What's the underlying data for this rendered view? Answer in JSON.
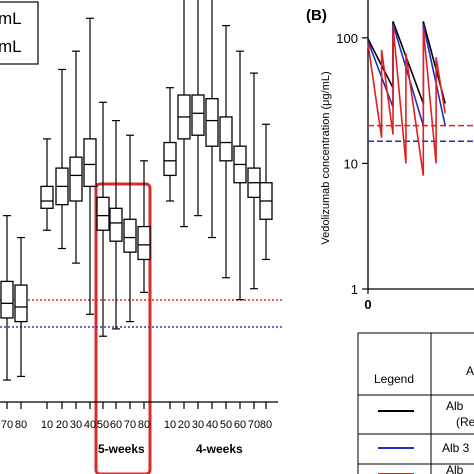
{
  "chart_data": [
    {
      "type": "box",
      "legend": [
        "mL",
        "mL"
      ],
      "group_labels": [
        "5-weeks",
        "4-weeks"
      ],
      "reference_lines": [
        {
          "color": "#d92b2b",
          "style": "dotted"
        },
        {
          "color": "#2b3fbf",
          "style": "dotted"
        }
      ],
      "highlight_color": "#d92b2b",
      "groups": [
        {
          "name": "",
          "categories": [
            "70",
            "80"
          ],
          "boxes": [
            {
              "whisker_low": 0.06,
              "q1": 0.23,
              "median": 0.27,
              "q3": 0.33,
              "whisker_high": 0.51
            },
            {
              "whisker_low": 0.07,
              "q1": 0.22,
              "median": 0.26,
              "q3": 0.32,
              "whisker_high": 0.45
            }
          ]
        },
        {
          "name": "5-weeks",
          "categories": [
            "10",
            "20",
            "30",
            "40",
            "50",
            "60",
            "70",
            "80"
          ],
          "boxes": [
            {
              "whisker_low": 0.47,
              "q1": 0.53,
              "median": 0.55,
              "q3": 0.59,
              "whisker_high": 0.72
            },
            {
              "whisker_low": 0.42,
              "q1": 0.54,
              "median": 0.59,
              "q3": 0.64,
              "whisker_high": 0.91
            },
            {
              "whisker_low": 0.38,
              "q1": 0.55,
              "median": 0.62,
              "q3": 0.67,
              "whisker_high": 0.96
            },
            {
              "whisker_low": 0.24,
              "q1": 0.59,
              "median": 0.65,
              "q3": 0.72,
              "whisker_high": 1.05
            },
            {
              "whisker_low": 0.18,
              "q1": 0.47,
              "median": 0.51,
              "q3": 0.56,
              "whisker_high": 0.82
            },
            {
              "whisker_low": 0.2,
              "q1": 0.44,
              "median": 0.49,
              "q3": 0.53,
              "whisker_high": 0.77
            },
            {
              "whisker_low": 0.22,
              "q1": 0.41,
              "median": 0.45,
              "q3": 0.5,
              "whisker_high": 0.73
            },
            {
              "whisker_low": 0.3,
              "q1": 0.39,
              "median": 0.43,
              "q3": 0.48,
              "whisker_high": 0.66
            }
          ]
        },
        {
          "name": "4-weeks",
          "categories": [
            "10",
            "20",
            "30",
            "40",
            "50",
            "60",
            "70",
            "80"
          ],
          "boxes": [
            {
              "whisker_low": 0.55,
              "q1": 0.62,
              "median": 0.66,
              "q3": 0.71,
              "whisker_high": 0.86
            },
            {
              "whisker_low": 0.48,
              "q1": 0.72,
              "median": 0.78,
              "q3": 0.84,
              "whisker_high": 1.14
            },
            {
              "whisker_low": 0.51,
              "q1": 0.73,
              "median": 0.79,
              "q3": 0.84,
              "whisker_high": 1.17
            },
            {
              "whisker_low": 0.45,
              "q1": 0.7,
              "median": 0.77,
              "q3": 0.83,
              "whisker_high": 1.17
            },
            {
              "whisker_low": 0.34,
              "q1": 0.66,
              "median": 0.71,
              "q3": 0.78,
              "whisker_high": 1.03
            },
            {
              "whisker_low": 0.28,
              "q1": 0.6,
              "median": 0.65,
              "q3": 0.7,
              "whisker_high": 0.96
            },
            {
              "whisker_low": 0.31,
              "q1": 0.56,
              "median": 0.6,
              "q3": 0.64,
              "whisker_high": 0.9
            },
            {
              "whisker_low": 0.39,
              "q1": 0.5,
              "median": 0.55,
              "q3": 0.6,
              "whisker_high": 0.76
            }
          ]
        }
      ]
    },
    {
      "type": "line",
      "panel_label": "(B)",
      "ylabel": "Vedolizumab concentration (μg/mL)",
      "yscale": "log",
      "ylim": [
        1,
        200
      ],
      "yticks": [
        1,
        10,
        100
      ],
      "xticks": [
        0
      ],
      "xlim": [
        0,
        14
      ],
      "series": [
        {
          "color": "#000000",
          "x": [
            0,
            3.3,
            3.3,
            7.3,
            7.3,
            10.2
          ],
          "y": [
            98,
            40,
            135,
            30,
            135,
            30
          ]
        },
        {
          "color": "#1f2fbf",
          "x": [
            0,
            3.3,
            3.3,
            7.3,
            7.3,
            10.2
          ],
          "y": [
            94,
            28,
            128,
            20,
            128,
            20
          ]
        },
        {
          "color": "#e02020",
          "x": [
            0,
            1.8,
            1.8,
            3.3,
            3.3,
            5.0,
            5.0,
            7.3,
            7.3,
            9.0,
            9.0,
            10.2
          ],
          "y": [
            90,
            16,
            80,
            17,
            125,
            10,
            75,
            8,
            120,
            10,
            70,
            25
          ]
        }
      ],
      "reference_lines": [
        {
          "y": 20,
          "color": "#e02020",
          "style": "dashed"
        },
        {
          "y": 15,
          "color": "#1f2fbf",
          "style": "dashed"
        }
      ]
    }
  ],
  "legend_table": {
    "header": [
      "Legend",
      "A"
    ],
    "rows": [
      {
        "color": "#000000",
        "text": "Alb",
        "sub": "(Re"
      },
      {
        "color": "#1f2fbf",
        "text": "Alb 3",
        "sub": ""
      },
      {
        "color": "#e02020",
        "text": "Alb",
        "sub": ""
      }
    ]
  }
}
